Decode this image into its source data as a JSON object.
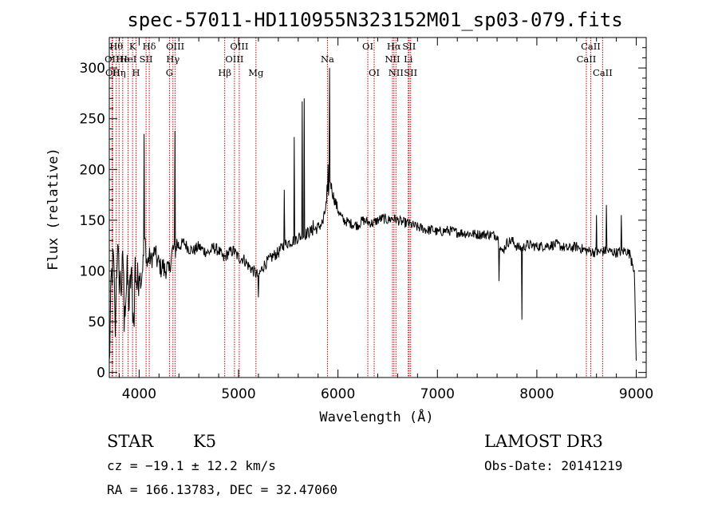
{
  "chart_data": {
    "type": "line",
    "title": "spec-57011-HD110955N323152M01_sp03-079.fits",
    "xlabel": "Wavelength (Å)",
    "ylabel": "Flux (relative)",
    "xlim": [
      3700,
      9100
    ],
    "ylim": [
      -5,
      330
    ],
    "xticks": [
      "4000",
      "5000",
      "6000",
      "7000",
      "8000",
      "9000"
    ],
    "yticks": [
      "0",
      "50",
      "100",
      "150",
      "200",
      "250",
      "300"
    ],
    "line_color": "#cc0000",
    "spectrum_color": "#000000",
    "spectrum_anchors": [
      [
        3700,
        5
      ],
      [
        3720,
        90
      ],
      [
        3740,
        110
      ],
      [
        3760,
        60
      ],
      [
        3780,
        120
      ],
      [
        3800,
        95
      ],
      [
        3820,
        85
      ],
      [
        3840,
        110
      ],
      [
        3860,
        70
      ],
      [
        3880,
        95
      ],
      [
        3900,
        65
      ],
      [
        3920,
        100
      ],
      [
        3940,
        55
      ],
      [
        3960,
        105
      ],
      [
        3980,
        85
      ],
      [
        4000,
        100
      ],
      [
        4020,
        90
      ],
      [
        4040,
        110
      ],
      [
        4060,
        130
      ],
      [
        4080,
        105
      ],
      [
        4100,
        115
      ],
      [
        4120,
        110
      ],
      [
        4140,
        115
      ],
      [
        4160,
        120
      ],
      [
        4180,
        110
      ],
      [
        4200,
        108
      ],
      [
        4220,
        102
      ],
      [
        4240,
        106
      ],
      [
        4260,
        100
      ],
      [
        4280,
        104
      ],
      [
        4300,
        98
      ],
      [
        4320,
        112
      ],
      [
        4340,
        122
      ],
      [
        4360,
        118
      ],
      [
        4380,
        128
      ],
      [
        4400,
        124
      ],
      [
        4450,
        128
      ],
      [
        4500,
        122
      ],
      [
        4550,
        120
      ],
      [
        4600,
        124
      ],
      [
        4650,
        120
      ],
      [
        4700,
        118
      ],
      [
        4750,
        123
      ],
      [
        4800,
        120
      ],
      [
        4850,
        112
      ],
      [
        4900,
        118
      ],
      [
        4950,
        120
      ],
      [
        5000,
        113
      ],
      [
        5050,
        112
      ],
      [
        5100,
        105
      ],
      [
        5150,
        100
      ],
      [
        5200,
        95
      ],
      [
        5250,
        105
      ],
      [
        5300,
        110
      ],
      [
        5350,
        115
      ],
      [
        5400,
        118
      ],
      [
        5450,
        125
      ],
      [
        5500,
        128
      ],
      [
        5550,
        130
      ],
      [
        5600,
        133
      ],
      [
        5650,
        135
      ],
      [
        5700,
        138
      ],
      [
        5750,
        140
      ],
      [
        5800,
        143
      ],
      [
        5850,
        148
      ],
      [
        5900,
        175
      ],
      [
        5920,
        190
      ],
      [
        5950,
        175
      ],
      [
        6000,
        160
      ],
      [
        6050,
        150
      ],
      [
        6100,
        148
      ],
      [
        6150,
        146
      ],
      [
        6200,
        145
      ],
      [
        6250,
        150
      ],
      [
        6300,
        148
      ],
      [
        6350,
        147
      ],
      [
        6400,
        150
      ],
      [
        6450,
        152
      ],
      [
        6500,
        150
      ],
      [
        6550,
        152
      ],
      [
        6600,
        150
      ],
      [
        6650,
        148
      ],
      [
        6700,
        147
      ],
      [
        6750,
        145
      ],
      [
        6800,
        143
      ],
      [
        6850,
        142
      ],
      [
        6900,
        140
      ],
      [
        6950,
        141
      ],
      [
        7000,
        138
      ],
      [
        7100,
        140
      ],
      [
        7200,
        138
      ],
      [
        7300,
        137
      ],
      [
        7400,
        136
      ],
      [
        7500,
        136
      ],
      [
        7600,
        135
      ],
      [
        7650,
        118
      ],
      [
        7700,
        128
      ],
      [
        7750,
        130
      ],
      [
        7800,
        124
      ],
      [
        7850,
        122
      ],
      [
        7900,
        126
      ],
      [
        8000,
        124
      ],
      [
        8100,
        125
      ],
      [
        8200,
        126
      ],
      [
        8300,
        122
      ],
      [
        8400,
        124
      ],
      [
        8500,
        120
      ],
      [
        8600,
        118
      ],
      [
        8700,
        120
      ],
      [
        8800,
        118
      ],
      [
        8900,
        120
      ],
      [
        8950,
        115
      ],
      [
        8980,
        100
      ],
      [
        9000,
        10
      ]
    ],
    "spectrum_spikes": [
      [
        4050,
        235
      ],
      [
        4360,
        238
      ],
      [
        5460,
        180
      ],
      [
        5560,
        232
      ],
      [
        5640,
        267
      ],
      [
        5660,
        270
      ],
      [
        5750,
        150
      ],
      [
        5890,
        185
      ],
      [
        5900,
        205
      ],
      [
        5915,
        300
      ],
      [
        7850,
        52
      ],
      [
        7620,
        90
      ],
      [
        8700,
        165
      ],
      [
        8600,
        155
      ],
      [
        8850,
        155
      ],
      [
        8950,
        105
      ],
      [
        4250,
        95
      ],
      [
        5200,
        74
      ],
      [
        3950,
        45
      ],
      [
        3850,
        40
      ],
      [
        3760,
        35
      ]
    ],
    "lines": [
      {
        "wl": 3727,
        "label": "OII",
        "row": 2
      },
      {
        "wl": 3734,
        "label": "OII",
        "row": 3
      },
      {
        "wl": 3770,
        "label": "Hθ",
        "row": 1
      },
      {
        "wl": 3798,
        "label": "Hη",
        "row": 3
      },
      {
        "wl": 3835,
        "label": "He",
        "row": 2
      },
      {
        "wl": 3889,
        "label": "HeI",
        "row": 2
      },
      {
        "wl": 3934,
        "label": "K",
        "row": 1
      },
      {
        "wl": 3969,
        "label": "H",
        "row": 3
      },
      {
        "wl": 4070,
        "label": "SII",
        "row": 2
      },
      {
        "wl": 4102,
        "label": "Hδ",
        "row": 1
      },
      {
        "wl": 4305,
        "label": "G",
        "row": 3
      },
      {
        "wl": 4340,
        "label": "Hγ",
        "row": 2
      },
      {
        "wl": 4363,
        "label": "OIII",
        "row": 1
      },
      {
        "wl": 4861,
        "label": "Hβ",
        "row": 3
      },
      {
        "wl": 4959,
        "label": "OIII",
        "row": 2
      },
      {
        "wl": 5007,
        "label": "OIII",
        "row": 1
      },
      {
        "wl": 5175,
        "label": "Mg",
        "row": 3
      },
      {
        "wl": 5894,
        "label": "Na",
        "row": 2
      },
      {
        "wl": 6300,
        "label": "OI",
        "row": 1
      },
      {
        "wl": 6364,
        "label": "OI",
        "row": 3
      },
      {
        "wl": 6548,
        "label": "NII",
        "row": 2
      },
      {
        "wl": 6563,
        "label": "Hα",
        "row": 1
      },
      {
        "wl": 6583,
        "label": "NII",
        "row": 3
      },
      {
        "wl": 6707,
        "label": "Li",
        "row": 2
      },
      {
        "wl": 6716,
        "label": "SII",
        "row": 1
      },
      {
        "wl": 6731,
        "label": "SII",
        "row": 3
      },
      {
        "wl": 8498,
        "label": "CaII",
        "row": 2
      },
      {
        "wl": 8542,
        "label": "CaII",
        "row": 1
      },
      {
        "wl": 8662,
        "label": "CaII",
        "row": 3
      }
    ]
  },
  "info": {
    "class": "STAR",
    "subclass": "K5",
    "survey": "LAMOST DR3",
    "cz": "cz = −19.1 ± 12.2 km/s",
    "obs_date": "Obs-Date: 20141219",
    "coords": "RA = 166.13783, DEC =  32.47060"
  }
}
